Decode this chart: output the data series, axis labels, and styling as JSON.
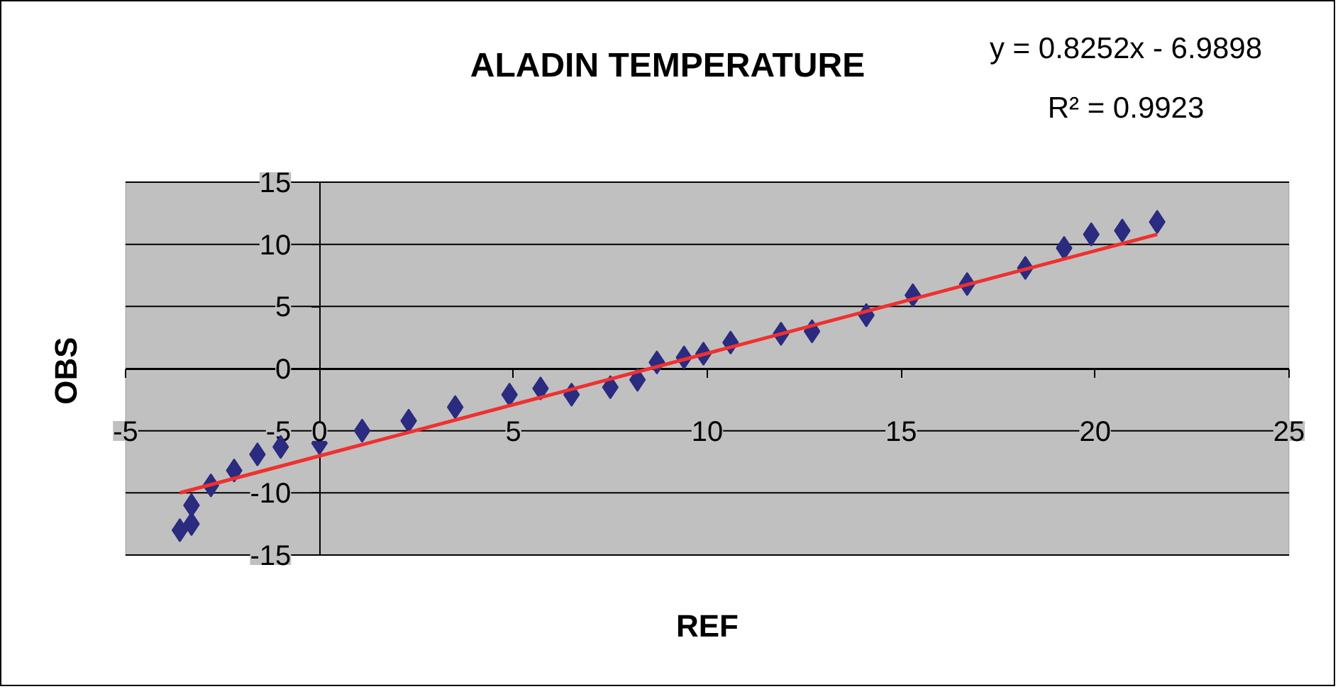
{
  "chart_data": {
    "type": "scatter",
    "title": "ALADIN TEMPERATURE",
    "xlabel": "REF",
    "ylabel": "OBS",
    "annotations": [
      "y = 0.8252x - 6.9898",
      "R² = 0.9923"
    ],
    "xlim": [
      -5,
      25
    ],
    "ylim": [
      -15,
      15
    ],
    "xticks": [
      -5,
      0,
      5,
      10,
      15,
      20,
      25
    ],
    "yticks": [
      -15,
      -10,
      -5,
      0,
      5,
      10,
      15
    ],
    "grid": "y",
    "marker": "diamond",
    "series": [
      {
        "color": "#2b2b80",
        "x": [
          -3.6,
          -3.3,
          -3.3,
          -2.8,
          -2.2,
          -1.6,
          -1.0,
          0.0,
          1.1,
          2.3,
          3.5,
          4.9,
          5.7,
          6.5,
          7.5,
          8.2,
          8.7,
          9.4,
          9.9,
          10.6,
          11.9,
          12.7,
          14.1,
          15.3,
          16.7,
          18.2,
          19.2,
          19.9,
          20.7,
          21.6
        ],
        "values": [
          -13.0,
          -12.5,
          -11.0,
          -9.4,
          -8.2,
          -6.9,
          -6.3,
          -6.0,
          -5.0,
          -4.2,
          -3.1,
          -2.1,
          -1.6,
          -2.1,
          -1.5,
          -0.9,
          0.5,
          0.9,
          1.2,
          2.1,
          2.8,
          3.0,
          4.3,
          5.9,
          6.8,
          8.1,
          9.7,
          10.8,
          11.1,
          11.8
        ]
      },
      {
        "type": "line",
        "color": "#f03030",
        "x": [
          -3.6,
          21.6
        ],
        "values": [
          -10.0,
          10.8
        ],
        "marker": "none"
      }
    ]
  }
}
